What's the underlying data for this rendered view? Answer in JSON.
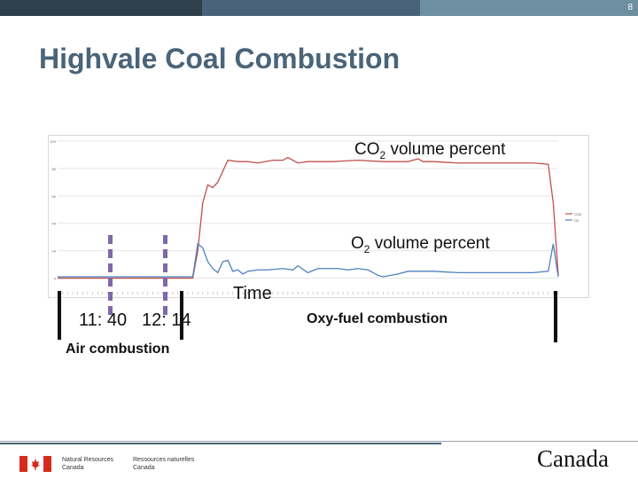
{
  "slide_number": "8",
  "title": "Highvale Coal Combustion",
  "colors": {
    "title": "#4a6478",
    "co2_line": "#c0504d",
    "o2_line": "#4f81bd",
    "marker_dashed": "#7f68a8",
    "marker_solid": "#111111"
  },
  "annotations": {
    "co2_label": "CO",
    "co2_sub": "2",
    "co2_rest": " volume percent",
    "o2_label": "O",
    "o2_sub": "2",
    "o2_rest": " volume percent",
    "time_label": "Time",
    "time_start": "11: 40",
    "time_switch": "12: 14",
    "oxy_label": "Oxy-fuel combustion",
    "air_label": "Air combustion"
  },
  "footer": {
    "dept_en_line1": "Natural Resources",
    "dept_en_line2": "Canada",
    "dept_fr_line1": "Ressources naturelles",
    "dept_fr_line2": "Canada",
    "wordmark": "Canada"
  },
  "chart_data": {
    "type": "line",
    "title": "",
    "xlabel": "Time",
    "ylabel": "",
    "ylim": [
      -10,
      100
    ],
    "yticks": [
      0,
      20,
      40,
      60,
      80,
      100
    ],
    "x_start": 0,
    "x_end": 100,
    "grid": true,
    "legend": "right",
    "series": [
      {
        "name": "CO2",
        "x": [
          0,
          27,
          28,
          29,
          30,
          31,
          32,
          34,
          36,
          38,
          40,
          43,
          45,
          46,
          47,
          48,
          50,
          55,
          60,
          65,
          70,
          71,
          72,
          73,
          75,
          80,
          85,
          90,
          95,
          98,
          99,
          100
        ],
        "values": [
          0,
          0,
          20,
          55,
          68,
          66,
          70,
          86,
          85,
          85,
          84,
          86,
          86,
          88,
          86,
          84,
          85,
          85,
          86,
          85,
          85,
          86,
          87,
          85,
          85,
          84,
          84,
          84,
          84,
          83,
          55,
          2
        ]
      },
      {
        "name": "O2",
        "x": [
          0,
          27,
          28,
          29,
          30,
          31,
          32,
          33,
          34,
          35,
          36,
          37,
          38,
          40,
          42,
          45,
          47,
          48,
          50,
          52,
          54,
          56,
          58,
          60,
          62,
          63,
          64,
          65,
          68,
          70,
          72,
          75,
          80,
          85,
          90,
          95,
          98,
          99,
          100
        ],
        "values": [
          1,
          1,
          25,
          22,
          12,
          7,
          4,
          12,
          13,
          5,
          6,
          3,
          5,
          6,
          6,
          7,
          6,
          9,
          4,
          7,
          7,
          7,
          6,
          7,
          6,
          4,
          2,
          1,
          3,
          5,
          5,
          5,
          4,
          4,
          4,
          4,
          5,
          25,
          1
        ]
      }
    ]
  }
}
